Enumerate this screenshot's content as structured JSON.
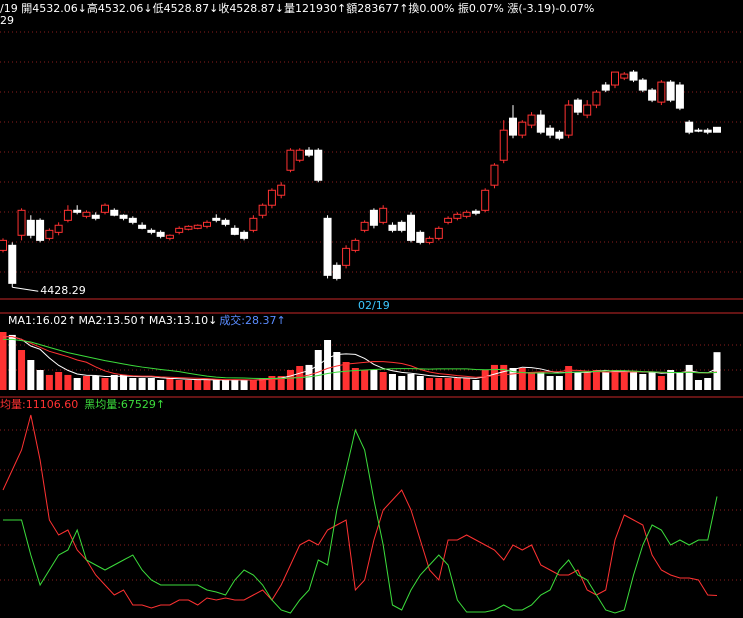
{
  "header": {
    "line1": "/19 開4532.06↓高4532.06↓低4528.87↓收4528.87↓量121930↑額283677↑換0.00% 振0.07% 漲(-3.19)-0.07%",
    "line2": "29"
  },
  "chart_data": [
    {
      "type": "candlestick",
      "up_color": "#ff3232",
      "down_color": "#ffffff",
      "ylim": [
        4420,
        4603
      ],
      "annotation": "4428.29",
      "categories": [
        null,
        null,
        null,
        null,
        null,
        null,
        null,
        null,
        null,
        null,
        null,
        null,
        null,
        null,
        null,
        null,
        null,
        null,
        null,
        null,
        null,
        null,
        null,
        null,
        null,
        null,
        null,
        null,
        null,
        null,
        null,
        null,
        null,
        null,
        null,
        null,
        null,
        null,
        null,
        null,
        "02/19",
        null,
        null,
        null,
        null,
        null,
        null,
        null,
        null,
        null,
        null,
        null,
        null,
        null,
        null,
        null,
        null,
        null,
        null,
        null,
        null,
        null,
        null,
        null,
        null,
        null,
        null,
        null,
        null,
        null,
        null,
        null,
        null,
        null,
        null,
        null,
        null,
        null
      ],
      "open": [
        4452.2,
        4455.5,
        4462.0,
        4471.7,
        4471.7,
        4460.0,
        4463.9,
        4471.7,
        4478.2,
        4474.3,
        4475.0,
        4476.9,
        4478.2,
        4475.0,
        4473.0,
        4468.5,
        4465.2,
        4463.9,
        4460.0,
        4463.9,
        4465.9,
        4466.5,
        4467.8,
        4473.0,
        4471.7,
        4466.5,
        4463.9,
        4465.2,
        4475.0,
        4481.5,
        4488.0,
        4504.2,
        4510.7,
        4517.2,
        4517.2,
        4473.0,
        4442.5,
        4442.5,
        4452.2,
        4465.2,
        4478.2,
        4470.4,
        4468.5,
        4470.4,
        4475.0,
        4463.9,
        4457.4,
        4460.0,
        4470.4,
        4473.0,
        4474.3,
        4477.6,
        4478.2,
        4494.5,
        4510.7,
        4538.0,
        4527.0,
        4533.5,
        4540.0,
        4531.5,
        4528.9,
        4527.0,
        4549.7,
        4540.0,
        4546.5,
        4559.5,
        4559.5,
        4564.0,
        4567.9,
        4562.7,
        4556.2,
        4548.4,
        4561.4,
        4559.5,
        4535.4,
        4530.2,
        4530.2,
        4532.06
      ],
      "high": [
        4460.0,
        4457.4,
        4479.5,
        4475.0,
        4473.0,
        4466.5,
        4470.4,
        4481.5,
        4481.5,
        4478.2,
        4476.9,
        4482.7,
        4479.5,
        4475.6,
        4474.3,
        4470.4,
        4466.5,
        4465.2,
        4462.6,
        4467.8,
        4468.5,
        4469.1,
        4471.7,
        4475.6,
        4473.0,
        4468.5,
        4465.2,
        4475.0,
        4482.7,
        4492.5,
        4496.4,
        4518.5,
        4518.5,
        4519.2,
        4518.5,
        4475.0,
        4444.4,
        4455.5,
        4460.0,
        4471.7,
        4479.5,
        4481.5,
        4470.4,
        4471.7,
        4476.9,
        4465.2,
        4461.3,
        4467.8,
        4474.3,
        4476.9,
        4478.2,
        4478.9,
        4492.5,
        4508.8,
        4536.7,
        4546.5,
        4536.7,
        4541.9,
        4543.2,
        4533.5,
        4530.2,
        4549.7,
        4551.0,
        4549.7,
        4556.2,
        4561.4,
        4567.9,
        4567.9,
        4569.2,
        4564.0,
        4557.5,
        4562.7,
        4562.7,
        4561.4,
        4536.7,
        4531.5,
        4531.5,
        4532.06
      ],
      "low": [
        4450.9,
        4428.29,
        4458.7,
        4460.0,
        4457.4,
        4458.7,
        4462.0,
        4470.4,
        4475.6,
        4473.0,
        4471.7,
        4475.6,
        4474.3,
        4471.7,
        4469.1,
        4465.9,
        4462.6,
        4460.0,
        4458.7,
        4462.6,
        4465.2,
        4465.9,
        4466.5,
        4470.4,
        4467.8,
        4462.0,
        4458.7,
        4463.9,
        4473.0,
        4479.5,
        4486.0,
        4502.9,
        4509.4,
        4512.7,
        4496.4,
        4434.0,
        4432.7,
        4440.5,
        4450.9,
        4463.9,
        4466.5,
        4469.1,
        4463.9,
        4463.9,
        4457.4,
        4456.1,
        4456.1,
        4458.7,
        4469.1,
        4471.7,
        4473.0,
        4475.0,
        4476.9,
        4492.5,
        4508.8,
        4525.0,
        4525.0,
        4531.5,
        4527.6,
        4525.0,
        4523.7,
        4525.0,
        4540.0,
        4538.0,
        4544.5,
        4554.9,
        4557.5,
        4562.7,
        4561.4,
        4554.9,
        4548.4,
        4546.5,
        4548.4,
        4543.2,
        4527.6,
        4528.9,
        4527.6,
        4528.87
      ],
      "close": [
        4458.7,
        4430.8,
        4478.2,
        4462.0,
        4458.7,
        4465.2,
        4468.5,
        4478.2,
        4476.9,
        4476.9,
        4473.0,
        4481.5,
        4475.0,
        4473.0,
        4470.4,
        4466.5,
        4463.9,
        4461.3,
        4462.0,
        4466.5,
        4467.8,
        4468.5,
        4470.4,
        4471.7,
        4469.1,
        4462.6,
        4460.0,
        4473.0,
        4481.5,
        4491.2,
        4494.5,
        4517.2,
        4517.2,
        4514.0,
        4497.7,
        4436.0,
        4434.0,
        4453.5,
        4458.7,
        4470.4,
        4468.5,
        4479.5,
        4465.2,
        4465.2,
        4458.7,
        4457.4,
        4460.0,
        4466.5,
        4473.0,
        4475.6,
        4476.9,
        4476.3,
        4491.2,
        4507.5,
        4530.2,
        4527.0,
        4535.4,
        4540.0,
        4528.9,
        4527.0,
        4525.0,
        4546.5,
        4541.9,
        4546.5,
        4554.9,
        4556.2,
        4567.9,
        4566.6,
        4562.7,
        4556.2,
        4549.7,
        4561.4,
        4549.7,
        4544.5,
        4528.9,
        4529.6,
        4528.9,
        4528.87
      ]
    },
    {
      "type": "volume",
      "ylim": [
        0,
        54
      ],
      "series": [
        {
          "name": "成交:28.37↑",
          "color": "#5a8cff",
          "values": [
            43.5,
            41.3,
            30,
            22.5,
            15,
            11.3,
            13.5,
            11.3,
            9,
            10.5,
            10.5,
            9,
            11.3,
            11.3,
            9,
            9,
            9,
            7.5,
            9,
            7.5,
            7.5,
            7.5,
            7.5,
            7.5,
            7.5,
            7.5,
            7.5,
            7.5,
            9,
            10.5,
            10.5,
            15,
            18,
            18.8,
            30,
            37.5,
            28.5,
            21,
            16.5,
            15,
            15,
            13.5,
            12,
            10.5,
            12,
            10.5,
            9,
            9,
            9,
            9,
            9,
            7.5,
            15,
            18.8,
            18.8,
            16.5,
            16.5,
            13.5,
            13.5,
            10.5,
            10.5,
            18,
            13.5,
            13.5,
            15,
            13.5,
            15,
            13.5,
            13.5,
            12,
            13.5,
            10.5,
            15,
            13.5,
            18.8,
            7.5,
            9,
            28.37
          ]
        },
        {
          "name": "MA1:16.02↑",
          "color": "#ffffff",
          "values": [
            40,
            40,
            38,
            33,
            30.5,
            24,
            18.5,
            14.7,
            12,
            11.1,
            10.9,
            10.1,
            10.1,
            10.5,
            10.2,
            9.9,
            9.9,
            9.2,
            8.7,
            8.4,
            8.1,
            7.8,
            7.8,
            7.5,
            7.5,
            7.5,
            7.5,
            7.5,
            7.8,
            8.4,
            9,
            10.5,
            12.6,
            14.6,
            18.5,
            23.9,
            26.6,
            27.1,
            26.7,
            23.7,
            19.2,
            16.2,
            14.4,
            13.2,
            12.6,
            11.7,
            10.8,
            10.2,
            9.9,
            9.3,
            9,
            8.7,
            9.9,
            11.9,
            13.8,
            15.3,
            17.1,
            16.8,
            15.8,
            14.1,
            12.9,
            13.2,
            13.2,
            13.2,
            14.1,
            14.7,
            13.9,
            14.1,
            14.1,
            13.5,
            13.5,
            12.6,
            12.9,
            12.9,
            14.3,
            13.2,
            12.9,
            16.02
          ]
        },
        {
          "name": "MA2:13.50↑",
          "color": "#ff3232",
          "values": [
            40,
            40,
            38,
            35,
            32,
            29,
            27,
            25,
            22.5,
            20.8,
            17.3,
            14.3,
            12.4,
            11.3,
            10.7,
            10.4,
            10.4,
            9.8,
            9.6,
            9.3,
            9,
            8.8,
            8.5,
            8.1,
            7.8,
            7.8,
            7.7,
            7.5,
            7.7,
            7.9,
            8.3,
            9,
            10,
            11.2,
            13.4,
            16.2,
            18,
            19.4,
            20.1,
            20.7,
            21.4,
            21.3,
            20.7,
            19.9,
            18.1,
            15.4,
            13.5,
            12.3,
            11.6,
            10.8,
            10.2,
            9.6,
            9.9,
            10.8,
            11.4,
            12.1,
            12.7,
            13.2,
            13.6,
            13.7,
            13.8,
            14.8,
            14.7,
            14.2,
            13.8,
            13.5,
            13.4,
            13.4,
            13.6,
            13.7,
            13.7,
            13.1,
            13.1,
            13.1,
            13.5,
            12.9,
            12.8,
            13.5
          ]
        },
        {
          "name": "MA3:13.10↓",
          "color": "#3cdc3c",
          "values": [
            38,
            38,
            37,
            36,
            34,
            32,
            30,
            28,
            26.5,
            25,
            23.5,
            22,
            20.8,
            19.5,
            18.3,
            17.2,
            16.3,
            15.4,
            14.6,
            13.8,
            12.6,
            11.4,
            10.4,
            9.7,
            9.2,
            9.1,
            9,
            8.7,
            8.6,
            8.6,
            8.7,
            8.9,
            9.3,
            9.8,
            10.9,
            12.4,
            13.4,
            14.1,
            14.6,
            15,
            15.4,
            15.7,
            15.9,
            16,
            16,
            15.8,
            15.7,
            15.8,
            15.8,
            15.8,
            15.8,
            15.4,
            15.2,
            15.3,
            15.5,
            13.8,
            13.1,
            12.7,
            12.8,
            12.7,
            12.7,
            13.2,
            13.4,
            13.7,
            14,
            14.3,
            14.5,
            14.5,
            14.2,
            13.8,
            13.6,
            13.3,
            13.1,
            13.1,
            13.3,
            12.9,
            12.9,
            13.1
          ]
        }
      ]
    },
    {
      "type": "line",
      "ylim": [
        0,
        122550
      ],
      "series": [
        {
          "name": "均量:11106.60",
          "color": "#ff3232",
          "values": [
            71250,
            82650,
            94050,
            114000,
            88350,
            54150,
            45600,
            48450,
            37050,
            31350,
            22800,
            17100,
            11400,
            14250,
            5700,
            5700,
            3990,
            5700,
            5700,
            8550,
            8550,
            5700,
            9690,
            8550,
            9690,
            8550,
            8550,
            11400,
            14250,
            8550,
            17100,
            28500,
            39900,
            42750,
            39900,
            48450,
            51300,
            54150,
            14250,
            19950,
            42750,
            59850,
            65550,
            71250,
            59850,
            42750,
            25650,
            19950,
            42750,
            42750,
            45600,
            42750,
            39900,
            37050,
            31350,
            39900,
            37050,
            39900,
            28500,
            25650,
            22800,
            22800,
            25650,
            14250,
            11400,
            14250,
            42750,
            57000,
            54150,
            51300,
            34200,
            25650,
            22800,
            21090,
            21090,
            19950,
            11400,
            11106.6
          ]
        },
        {
          "name": "黑均量:67529↑",
          "color": "#3cdc3c",
          "values": [
            54150,
            54150,
            54150,
            34200,
            17100,
            25650,
            34200,
            37050,
            48450,
            31350,
            28500,
            25650,
            28500,
            31350,
            34200,
            25650,
            19950,
            17100,
            17100,
            17100,
            17100,
            17100,
            14250,
            13110,
            11400,
            19950,
            25650,
            22800,
            17100,
            8550,
            2850,
            1140,
            8550,
            14250,
            31350,
            28500,
            59850,
            82650,
            105450,
            94050,
            65550,
            39900,
            5700,
            2850,
            14250,
            22800,
            28500,
            34200,
            28500,
            8550,
            1710,
            1710,
            1710,
            2850,
            5700,
            2850,
            2850,
            5700,
            11400,
            14250,
            25650,
            31350,
            22800,
            19950,
            11400,
            2850,
            1140,
            2850,
            22800,
            39900,
            51300,
            48450,
            39900,
            42750,
            39900,
            42750,
            42750,
            67529
          ]
        }
      ]
    }
  ]
}
